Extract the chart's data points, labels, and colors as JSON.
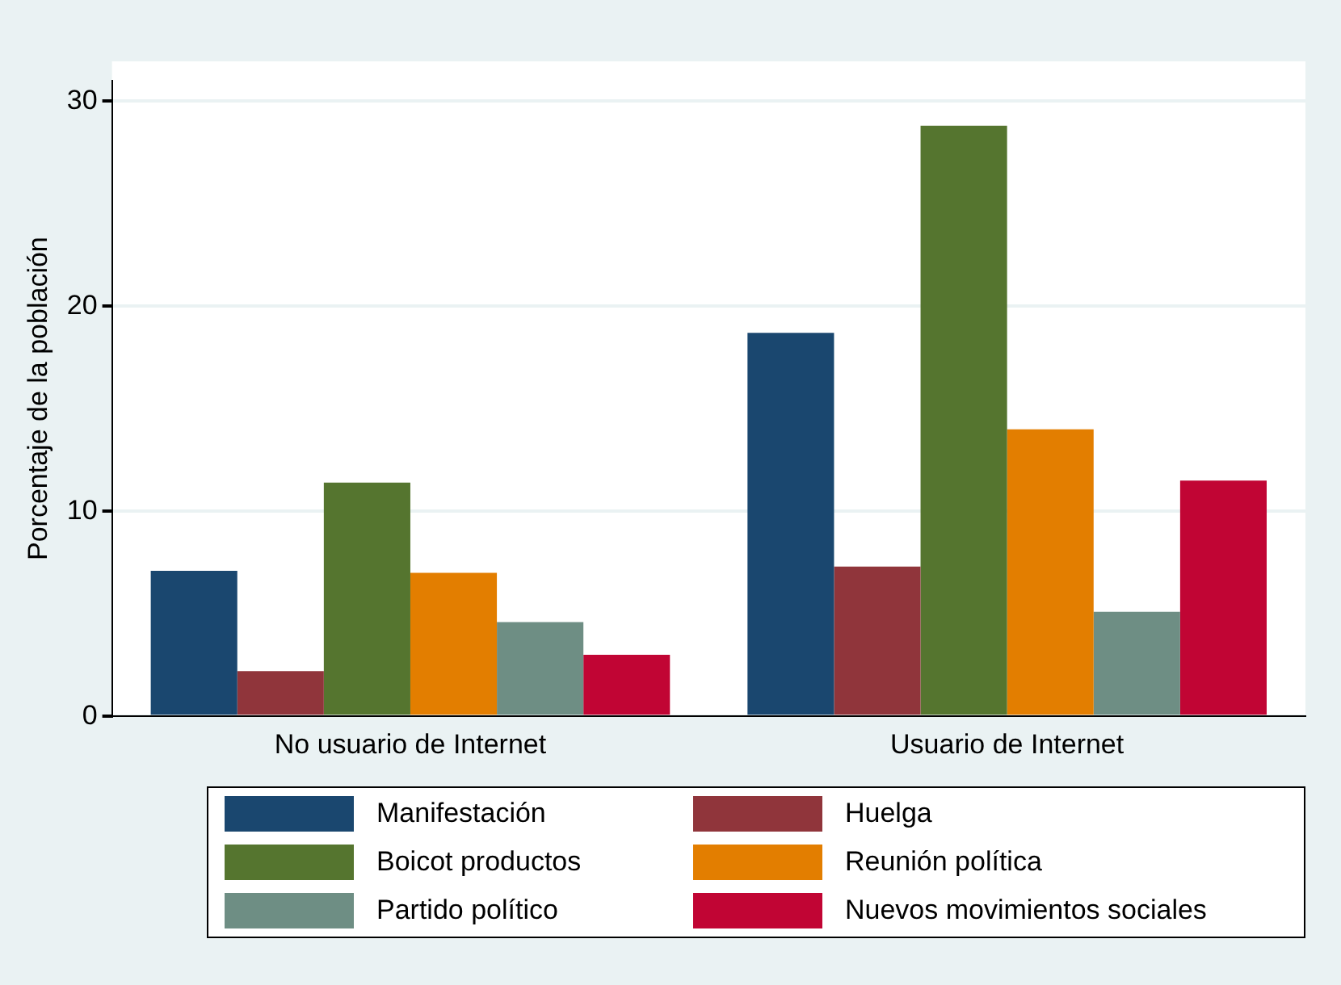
{
  "chart_data": {
    "type": "bar",
    "ylabel": "Porcentaje de la población",
    "categories": [
      "No usuario de Internet",
      "Usuario de Internet"
    ],
    "series": [
      {
        "name": "Manifestación",
        "color": "#1a476f",
        "values": [
          7.1,
          18.7
        ]
      },
      {
        "name": "Huelga",
        "color": "#90353b",
        "values": [
          2.2,
          7.3
        ]
      },
      {
        "name": "Boicot productos",
        "color": "#55752f",
        "values": [
          11.4,
          28.8
        ]
      },
      {
        "name": "Reunión política",
        "color": "#e37e00",
        "values": [
          7.0,
          14.0
        ]
      },
      {
        "name": "Partido político",
        "color": "#6e8e84",
        "values": [
          4.6,
          5.1
        ]
      },
      {
        "name": "Nuevos movimientos sociales",
        "color": "#c10534",
        "values": [
          3.0,
          11.5
        ]
      }
    ],
    "ylim": [
      0,
      31
    ],
    "yticks": [
      0,
      10,
      20,
      30
    ],
    "grid": "y",
    "legend": "bottom"
  }
}
